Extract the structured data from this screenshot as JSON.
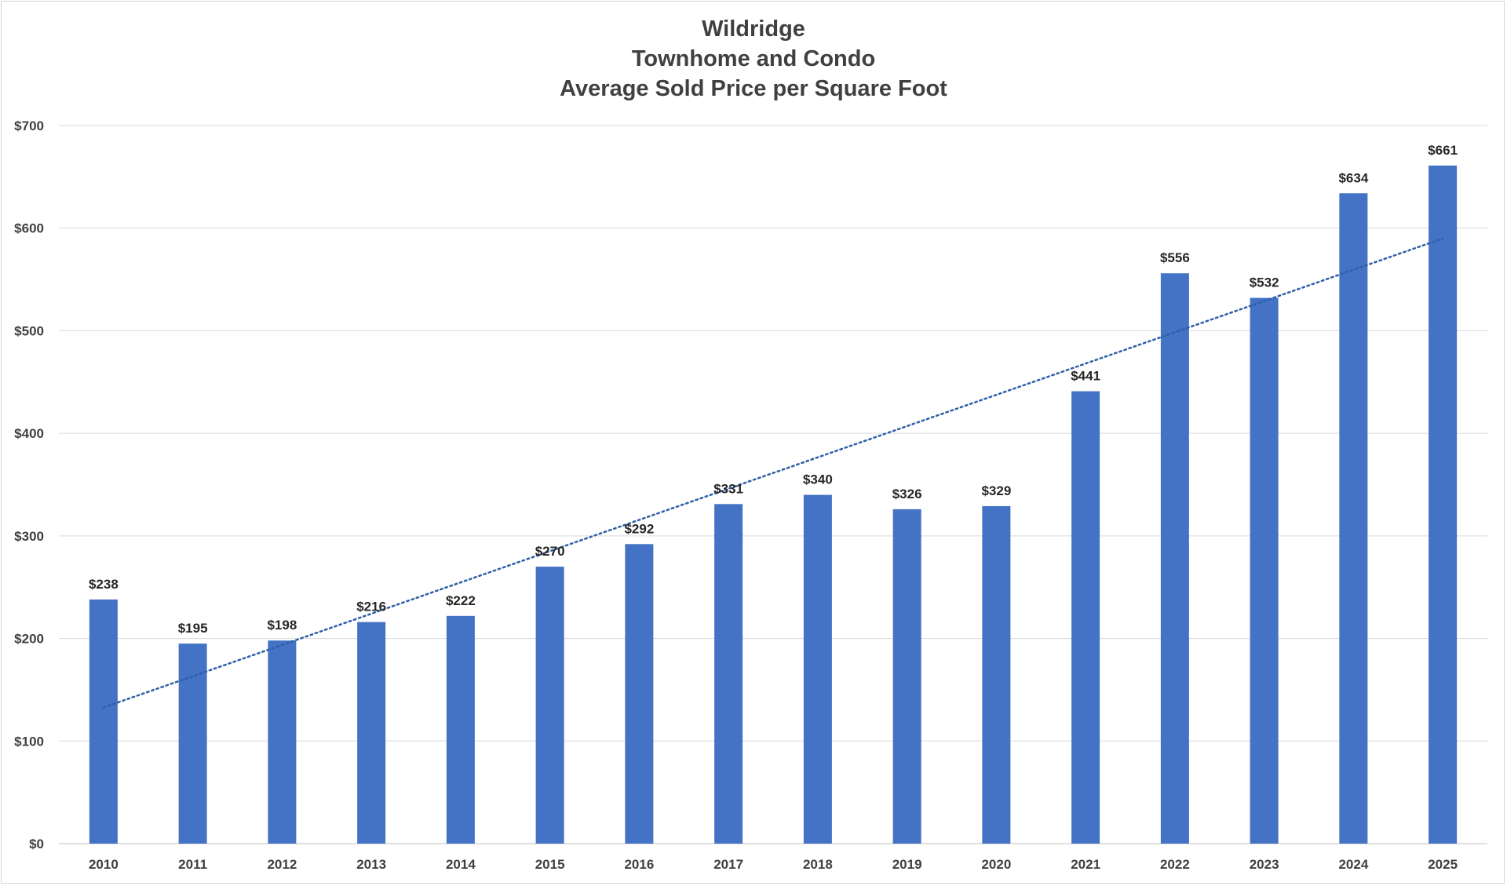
{
  "chart_data": {
    "type": "bar",
    "title": [
      "Wildridge",
      "Townhome and Condo",
      "Average Sold Price per Square Foot"
    ],
    "categories": [
      "2010",
      "2011",
      "2012",
      "2013",
      "2014",
      "2015",
      "2016",
      "2017",
      "2018",
      "2019",
      "2020",
      "2021",
      "2022",
      "2023",
      "2024",
      "2025"
    ],
    "values": [
      238,
      195,
      198,
      216,
      222,
      270,
      292,
      331,
      340,
      326,
      329,
      441,
      556,
      532,
      634,
      661
    ],
    "data_labels": [
      "$238",
      "$195",
      "$198",
      "$216",
      "$222",
      "$270",
      "$292",
      "$331",
      "$340",
      "$326",
      "$329",
      "$441",
      "$556",
      "$532",
      "$634",
      "$661"
    ],
    "ylim": [
      0,
      700
    ],
    "yticks": [
      0,
      100,
      200,
      300,
      400,
      500,
      600,
      700
    ],
    "ytick_labels": [
      "$0",
      "$100",
      "$200",
      "$300",
      "$400",
      "$500",
      "$600",
      "$700"
    ],
    "grid": true,
    "legend": false,
    "trendline": {
      "type": "linear",
      "style": "dotted"
    },
    "colors": {
      "bar": "#4472C4",
      "trendline": "#2E5FA8",
      "grid": "#d9d9d9"
    }
  }
}
